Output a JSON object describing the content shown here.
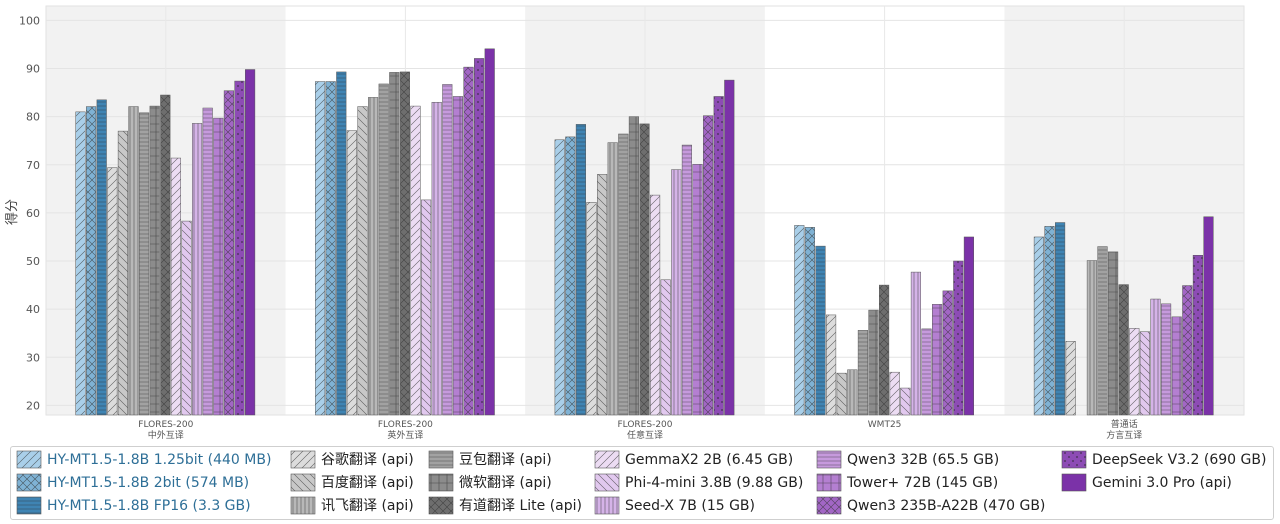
{
  "chart_data": {
    "type": "bar",
    "ylabel": "得分",
    "ylim": [
      18,
      103
    ],
    "yticks": [
      20,
      30,
      40,
      50,
      60,
      70,
      80,
      90,
      100
    ],
    "grid": true,
    "legend_position": "bottom",
    "categories": [
      {
        "line1": "FLORES-200",
        "line2": "中外互译",
        "shaded": true
      },
      {
        "line1": "FLORES-200",
        "line2": "英外互译",
        "shaded": false
      },
      {
        "line1": "FLORES-200",
        "line2": "任意互译",
        "shaded": true
      },
      {
        "line1": "WMT25",
        "line2": "",
        "shaded": false
      },
      {
        "line1": "普通话",
        "line2": "方言互译",
        "shaded": true
      }
    ],
    "series": [
      {
        "name": "HY-MT1.5-1.8B 1.25bit",
        "size": "(440 MB)",
        "highlight": true,
        "color": "#a9cfe9",
        "hatch": "diag",
        "values": [
          81.0,
          87.3,
          75.2,
          57.4,
          55.0
        ]
      },
      {
        "name": "HY-MT1.5-1.8B 2bit",
        "size": "(574 MB)",
        "highlight": true,
        "color": "#7fb2d4",
        "hatch": "cross",
        "values": [
          82.1,
          87.3,
          75.8,
          57.0,
          57.2
        ]
      },
      {
        "name": "HY-MT1.5-1.8B FP16",
        "size": "(3.3 GB)",
        "highlight": true,
        "color": "#3f84b3",
        "hatch": "horiz",
        "values": [
          83.5,
          89.3,
          78.4,
          53.1,
          58.0
        ]
      },
      {
        "name": "谷歌翻译",
        "size": "(api)",
        "highlight": false,
        "color": "#dcdcdc",
        "hatch": "diag",
        "values": [
          69.4,
          77.1,
          62.2,
          38.8,
          33.3
        ]
      },
      {
        "name": "百度翻译",
        "size": "(api)",
        "highlight": false,
        "color": "#c8c8c8",
        "hatch": "back",
        "values": [
          77.0,
          82.1,
          68.0,
          26.7,
          null
        ]
      },
      {
        "name": "讯飞翻译",
        "size": "(api)",
        "highlight": false,
        "color": "#b8b8b8",
        "hatch": "vert",
        "values": [
          82.1,
          84.0,
          74.6,
          27.4,
          50.1
        ]
      },
      {
        "name": "豆包翻译",
        "size": "(api)",
        "highlight": false,
        "color": "#a2a2a2",
        "hatch": "horiz",
        "values": [
          80.8,
          86.8,
          76.4,
          35.6,
          53.0
        ]
      },
      {
        "name": "微软翻译",
        "size": "(api)",
        "highlight": false,
        "color": "#8c8c8c",
        "hatch": "grid",
        "values": [
          82.2,
          89.2,
          80.0,
          39.8,
          51.9
        ]
      },
      {
        "name": "有道翻译 Lite",
        "size": "(api)",
        "highlight": false,
        "color": "#6e6e6e",
        "hatch": "cross",
        "values": [
          84.5,
          89.3,
          78.5,
          45.0,
          45.1
        ]
      },
      {
        "name": "GemmaX2 2B",
        "size": "(6.45 GB)",
        "highlight": false,
        "color": "#ecdcf3",
        "hatch": "diag",
        "values": [
          71.4,
          82.2,
          63.7,
          26.9,
          36.0
        ]
      },
      {
        "name": "Phi-4-mini 3.8B",
        "size": "(9.88 GB)",
        "highlight": false,
        "color": "#e1c8ee",
        "hatch": "back",
        "values": [
          58.3,
          62.7,
          46.1,
          23.6,
          35.3
        ]
      },
      {
        "name": "Seed-X 7B",
        "size": "(15 GB)",
        "highlight": false,
        "color": "#d5b3e8",
        "hatch": "vert",
        "values": [
          78.6,
          83.0,
          69.0,
          47.7,
          42.1
        ]
      },
      {
        "name": "Qwen3 32B",
        "size": "(65.5 GB)",
        "highlight": false,
        "color": "#c69add",
        "hatch": "horiz",
        "values": [
          81.8,
          86.7,
          74.1,
          35.9,
          41.1
        ]
      },
      {
        "name": "Tower+ 72B",
        "size": "(145 GB)",
        "highlight": false,
        "color": "#b47fd1",
        "hatch": "grid",
        "values": [
          79.7,
          84.2,
          70.1,
          41.0,
          38.4
        ]
      },
      {
        "name": "Qwen3 235B-A22B",
        "size": "(470 GB)",
        "highlight": false,
        "color": "#a266c5",
        "hatch": "cross",
        "values": [
          85.4,
          90.3,
          80.2,
          43.8,
          44.9
        ]
      },
      {
        "name": "DeepSeek V3.2",
        "size": "(690 GB)",
        "highlight": false,
        "color": "#8d4cb5",
        "hatch": "dots",
        "values": [
          87.4,
          92.1,
          84.2,
          50.0,
          51.2
        ]
      },
      {
        "name": "Gemini 3.0 Pro",
        "size": "(api)",
        "highlight": false,
        "color": "#7b32a8",
        "hatch": "none",
        "values": [
          89.8,
          94.1,
          87.6,
          55.0,
          59.2
        ]
      }
    ]
  }
}
